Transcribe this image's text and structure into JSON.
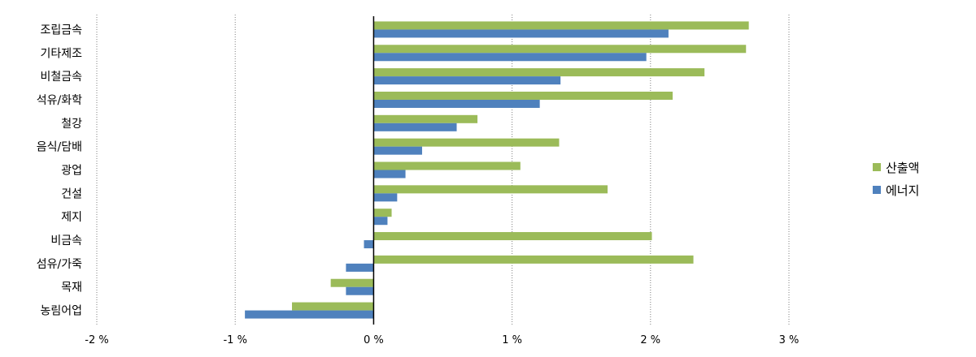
{
  "chart_data": {
    "type": "bar",
    "orientation": "horizontal",
    "categories": [
      "조립금속",
      "기타제조",
      "비철금속",
      "석유/화학",
      "철강",
      "음식/담배",
      "광업",
      "건설",
      "제지",
      "비금속",
      "섬유/가죽",
      "목재",
      "농림어업"
    ],
    "series": [
      {
        "name": "산출액",
        "color": "#9BBB59",
        "values": [
          2.71,
          2.69,
          2.39,
          2.16,
          0.75,
          1.34,
          1.06,
          1.69,
          0.13,
          2.01,
          2.31,
          -0.31,
          -0.59
        ]
      },
      {
        "name": "에너지",
        "color": "#4F81BD",
        "values": [
          2.13,
          1.97,
          1.35,
          1.2,
          0.6,
          0.35,
          0.23,
          0.17,
          0.1,
          -0.07,
          -0.2,
          -0.2,
          -0.93
        ]
      }
    ],
    "xlim": [
      -2,
      3
    ],
    "xticks": [
      -2,
      -1,
      0,
      1,
      2,
      3
    ],
    "xtick_labels": [
      "-2 %",
      "-1 %",
      "0 %",
      "1 %",
      "2 %",
      "3 %"
    ],
    "gridlines": "dotted vertical",
    "legend_position": "right"
  }
}
